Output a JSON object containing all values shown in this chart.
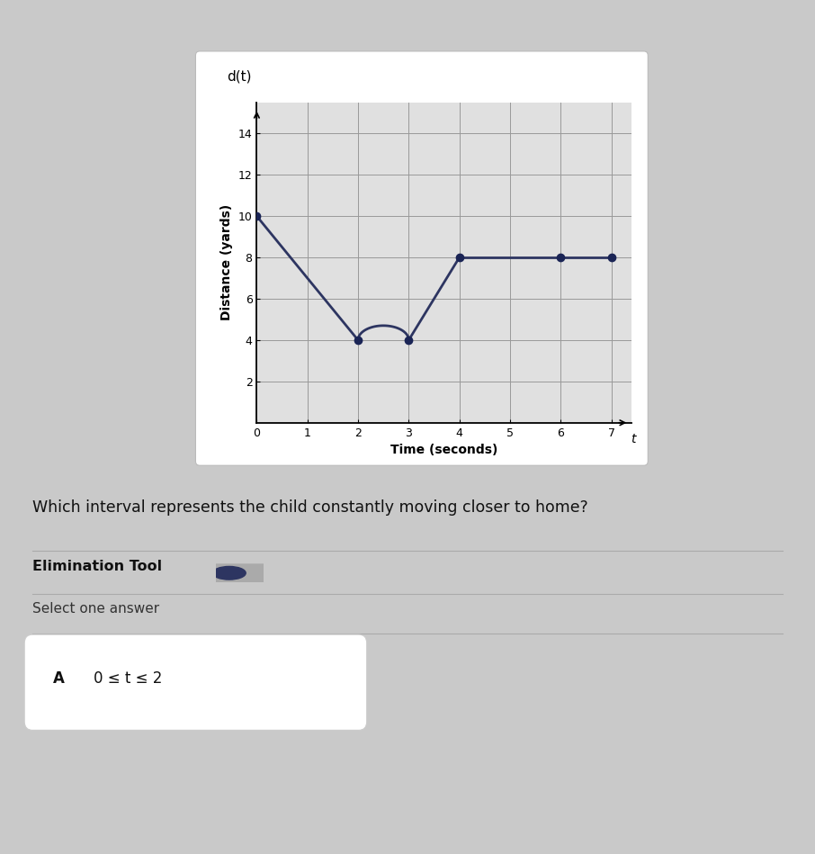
{
  "dot_x": [
    0,
    2,
    3,
    4,
    6,
    7
  ],
  "dot_y": [
    10,
    4,
    4,
    8,
    8,
    8
  ],
  "line_color": "#2d3561",
  "dot_color": "#1a2455",
  "bg_color": "#c9c9c9",
  "plot_bg": "#e0e0e0",
  "grid_color": "#999999",
  "xlabel": "Time (seconds)",
  "ylabel": "Distance (yards)",
  "chart_title": "d(t)",
  "xlim": [
    0,
    7.4
  ],
  "ylim": [
    0,
    15.5
  ],
  "xticks": [
    0,
    1,
    2,
    3,
    4,
    5,
    6,
    7
  ],
  "yticks": [
    2,
    4,
    6,
    8,
    10,
    12,
    14
  ],
  "question": "Which interval represents the child constantly moving closer to home?",
  "elim_label": "Elimination Tool",
  "select_label": "Select one answer",
  "answer_label": "A",
  "answer_text": "0 ≤ t ≤ 2",
  "figsize": [
    9.06,
    9.49
  ],
  "dpi": 100
}
